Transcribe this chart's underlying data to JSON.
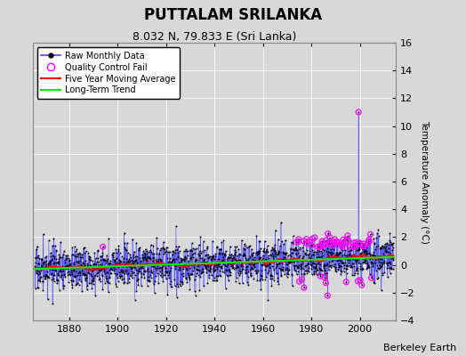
{
  "title": "PUTTALAM SRILANKA",
  "subtitle": "8.032 N, 79.833 E (Sri Lanka)",
  "ylabel": "Temperature Anomaly (°C)",
  "attribution": "Berkeley Earth",
  "xlim": [
    1865,
    2015
  ],
  "ylim": [
    -4,
    16
  ],
  "yticks": [
    -4,
    -2,
    0,
    2,
    4,
    6,
    8,
    10,
    12,
    14,
    16
  ],
  "xticks": [
    1880,
    1900,
    1920,
    1940,
    1960,
    1980,
    2000
  ],
  "year_start": 1866,
  "year_end": 2013,
  "raw_color": "#4444ff",
  "raw_dot_color": "#000000",
  "qc_color": "#ff00ff",
  "moving_avg_color": "#ff0000",
  "trend_color": "#00ee00",
  "background_color": "#d8d8d8",
  "grid_color": "#ffffff",
  "spike_year": 1999.5,
  "spike_value": 11.0,
  "qc_early_year": 1894.0,
  "qc_early_value": 1.3,
  "seed": 17
}
